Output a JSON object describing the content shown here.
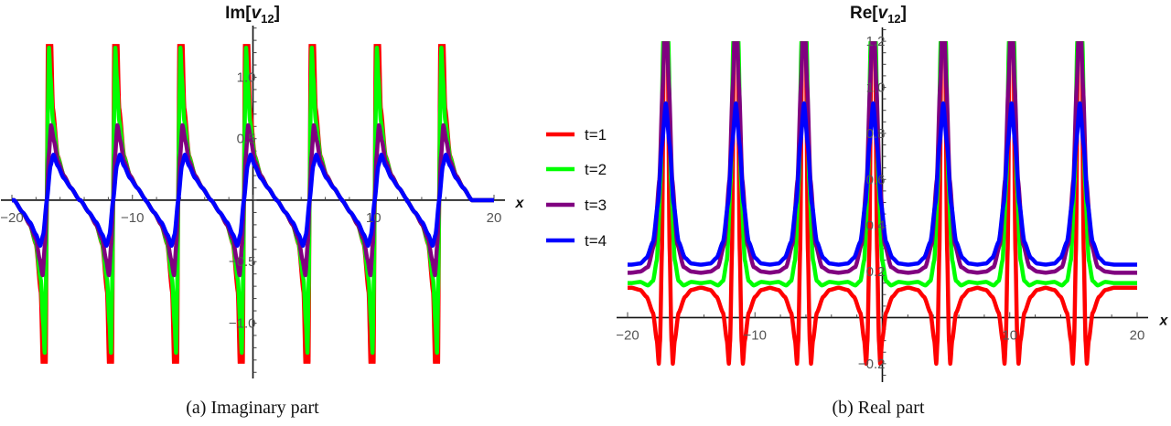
{
  "legend": {
    "placement": "between-panels",
    "items": [
      {
        "label": "t=1",
        "color": "#ff0000"
      },
      {
        "label": "t=2",
        "color": "#00ff00"
      },
      {
        "label": "t=3",
        "color": "#800080"
      },
      {
        "label": "t=4",
        "color": "#0000ff"
      }
    ]
  },
  "chart_data": [
    {
      "type": "line",
      "caption": "(a) Imaginary part",
      "ylabel_main": "Im[",
      "ylabel_var": "v",
      "ylabel_sub": "12",
      "ylabel_end": "]",
      "xlabel": "x",
      "xlim": [
        -20,
        20
      ],
      "ylim": [
        -1.45,
        1.42
      ],
      "curve_clip": [
        -1.33,
        1.27
      ],
      "grid": false,
      "x_ticks": [
        {
          "v": -20,
          "label": "−20"
        },
        {
          "v": -10,
          "label": "−10"
        },
        {
          "v": 10,
          "label": "10"
        },
        {
          "v": 20,
          "label": "20"
        }
      ],
      "y_ticks": [
        {
          "v": 1.0,
          "label": "1.0"
        },
        {
          "v": 0.5,
          "label": "0.5"
        },
        {
          "v": -0.5,
          "label": "−0.5"
        },
        {
          "v": -1.0,
          "label": "−1.0"
        }
      ],
      "period_centers": [
        -17.1,
        -11.6,
        -6.2,
        -0.75,
        4.7,
        10.1,
        15.45
      ],
      "series": [
        {
          "name": "t=1",
          "color": "#ff0000",
          "profile": [
            [
              -2.72,
              0
            ],
            [
              -2.0,
              -0.1
            ],
            [
              -1.4,
              -0.2
            ],
            [
              -0.9,
              -0.36
            ],
            [
              -0.5,
              -0.75
            ],
            [
              -0.32,
              -1.4
            ],
            [
              -0.2,
              -9
            ],
            [
              -0.1,
              -1.4
            ],
            [
              0,
              0
            ],
            [
              0.1,
              1.4
            ],
            [
              0.2,
              9
            ],
            [
              0.32,
              1.4
            ],
            [
              0.5,
              0.75
            ],
            [
              0.9,
              0.36
            ],
            [
              1.4,
              0.2
            ],
            [
              2.0,
              0.1
            ],
            [
              2.72,
              0
            ]
          ]
        },
        {
          "name": "t=2",
          "color": "#00ff00",
          "profile": [
            [
              -2.72,
              0
            ],
            [
              -2.0,
              -0.1
            ],
            [
              -1.4,
              -0.2
            ],
            [
              -0.9,
              -0.35
            ],
            [
              -0.5,
              -0.65
            ],
            [
              -0.3,
              -1.0
            ],
            [
              -0.18,
              -1.24
            ],
            [
              -0.08,
              -0.7
            ],
            [
              0,
              0
            ],
            [
              0.08,
              0.7
            ],
            [
              0.18,
              1.24
            ],
            [
              0.3,
              1.0
            ],
            [
              0.5,
              0.65
            ],
            [
              0.9,
              0.35
            ],
            [
              1.4,
              0.2
            ],
            [
              2.0,
              0.1
            ],
            [
              2.72,
              0
            ]
          ]
        },
        {
          "name": "t=3",
          "color": "#800080",
          "profile": [
            [
              -2.72,
              0
            ],
            [
              -2.0,
              -0.1
            ],
            [
              -1.4,
              -0.2
            ],
            [
              -0.9,
              -0.32
            ],
            [
              -0.6,
              -0.48
            ],
            [
              -0.35,
              -0.61
            ],
            [
              -0.15,
              -0.35
            ],
            [
              0,
              0
            ],
            [
              0.15,
              0.35
            ],
            [
              0.35,
              0.61
            ],
            [
              0.6,
              0.48
            ],
            [
              0.9,
              0.32
            ],
            [
              1.4,
              0.2
            ],
            [
              2.0,
              0.1
            ],
            [
              2.72,
              0
            ]
          ]
        },
        {
          "name": "t=4",
          "color": "#0000ff",
          "profile": [
            [
              -2.72,
              0
            ],
            [
              -2.0,
              -0.1
            ],
            [
              -1.4,
              -0.18
            ],
            [
              -0.9,
              -0.28
            ],
            [
              -0.55,
              -0.37
            ],
            [
              -0.3,
              -0.28
            ],
            [
              0,
              0
            ],
            [
              0.3,
              0.28
            ],
            [
              0.55,
              0.37
            ],
            [
              0.9,
              0.28
            ],
            [
              1.4,
              0.18
            ],
            [
              2.0,
              0.1
            ],
            [
              2.72,
              0
            ]
          ]
        }
      ]
    },
    {
      "type": "line",
      "caption": "(b) Real part",
      "ylabel_main": "Re[",
      "ylabel_var": "v",
      "ylabel_sub": "12",
      "ylabel_end": "]",
      "xlabel": "x",
      "xlim": [
        -20,
        20
      ],
      "ylim": [
        -0.28,
        1.26
      ],
      "curve_clip": [
        -0.3,
        1.2
      ],
      "grid": false,
      "x_ticks": [
        {
          "v": -20,
          "label": "−20"
        },
        {
          "v": -10,
          "label": "−10"
        },
        {
          "v": 10,
          "label": "10"
        },
        {
          "v": 20,
          "label": "20"
        }
      ],
      "y_ticks": [
        {
          "v": 1.2,
          "label": "1.2"
        },
        {
          "v": 1.0,
          "label": "1.0"
        },
        {
          "v": 0.8,
          "label": "0.8"
        },
        {
          "v": 0.6,
          "label": "0.6"
        },
        {
          "v": 0.4,
          "label": "0.4"
        },
        {
          "v": 0.2,
          "label": "0.2"
        },
        {
          "v": -0.2,
          "label": "−0.2"
        }
      ],
      "period_centers": [
        -17.0,
        -11.5,
        -6.15,
        -0.72,
        4.78,
        10.14,
        15.5
      ],
      "series": [
        {
          "name": "t=1",
          "color": "#ff0000",
          "profile": [
            [
              -2.72,
              0.13
            ],
            [
              -2.0,
              0.12
            ],
            [
              -1.5,
              0.09
            ],
            [
              -1.0,
              0.02
            ],
            [
              -0.7,
              -0.1
            ],
            [
              -0.55,
              -0.2
            ],
            [
              -0.45,
              -0.1
            ],
            [
              -0.3,
              0.3
            ],
            [
              -0.15,
              1.2
            ],
            [
              0,
              3
            ],
            [
              0.15,
              1.2
            ],
            [
              0.3,
              0.3
            ],
            [
              0.45,
              -0.1
            ],
            [
              0.55,
              -0.2
            ],
            [
              0.7,
              -0.1
            ],
            [
              1.0,
              0.02
            ],
            [
              1.5,
              0.09
            ],
            [
              2.0,
              0.12
            ],
            [
              2.72,
              0.13
            ]
          ]
        },
        {
          "name": "t=2",
          "color": "#00ff00",
          "profile": [
            [
              -2.72,
              0.15
            ],
            [
              -2.0,
              0.155
            ],
            [
              -1.4,
              0.14
            ],
            [
              -1.0,
              0.16
            ],
            [
              -0.7,
              0.25
            ],
            [
              -0.4,
              0.6
            ],
            [
              -0.2,
              1.2
            ],
            [
              0,
              2
            ],
            [
              0.2,
              1.2
            ],
            [
              0.4,
              0.6
            ],
            [
              0.7,
              0.25
            ],
            [
              1.0,
              0.16
            ],
            [
              1.4,
              0.14
            ],
            [
              2.0,
              0.155
            ],
            [
              2.72,
              0.15
            ]
          ]
        },
        {
          "name": "t=3",
          "color": "#800080",
          "profile": [
            [
              -2.72,
              0.195
            ],
            [
              -2.0,
              0.2
            ],
            [
              -1.4,
              0.22
            ],
            [
              -0.9,
              0.32
            ],
            [
              -0.5,
              0.6
            ],
            [
              -0.25,
              1.0
            ],
            [
              0,
              1.4
            ],
            [
              0.25,
              1.0
            ],
            [
              0.5,
              0.6
            ],
            [
              0.9,
              0.32
            ],
            [
              1.4,
              0.22
            ],
            [
              2.0,
              0.2
            ],
            [
              2.72,
              0.195
            ]
          ]
        },
        {
          "name": "t=4",
          "color": "#0000ff",
          "profile": [
            [
              -2.72,
              0.23
            ],
            [
              -2.0,
              0.235
            ],
            [
              -1.5,
              0.26
            ],
            [
              -1.0,
              0.33
            ],
            [
              -0.6,
              0.5
            ],
            [
              -0.3,
              0.75
            ],
            [
              0,
              0.93
            ],
            [
              0.3,
              0.75
            ],
            [
              0.6,
              0.5
            ],
            [
              1.0,
              0.33
            ],
            [
              1.5,
              0.26
            ],
            [
              2.0,
              0.235
            ],
            [
              2.72,
              0.23
            ]
          ]
        }
      ]
    }
  ]
}
